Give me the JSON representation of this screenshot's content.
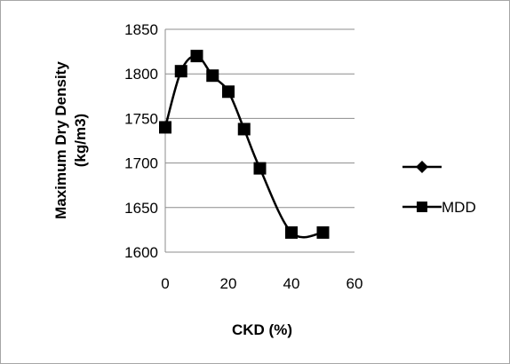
{
  "chart_data": {
    "type": "line",
    "title": "",
    "xlabel": "CKD (%)",
    "ylabel_lines": [
      "Maximum Dry Density",
      "(kg/m3)"
    ],
    "xlim": [
      0,
      60
    ],
    "ylim": [
      1600,
      1850
    ],
    "x_ticks": [
      0,
      20,
      40,
      60
    ],
    "y_ticks": [
      1600,
      1650,
      1700,
      1750,
      1800,
      1850
    ],
    "grid": "horizontal major gridlines",
    "legend_position": "right",
    "series": [
      {
        "name": "",
        "marker": "diamond",
        "x": [],
        "y": []
      },
      {
        "name": "MDD",
        "marker": "square",
        "smooth": true,
        "x": [
          0,
          5,
          10,
          15,
          20,
          25,
          30,
          40,
          50
        ],
        "y": [
          1740,
          1803,
          1820,
          1798,
          1780,
          1738,
          1694,
          1622,
          1622
        ]
      }
    ]
  }
}
